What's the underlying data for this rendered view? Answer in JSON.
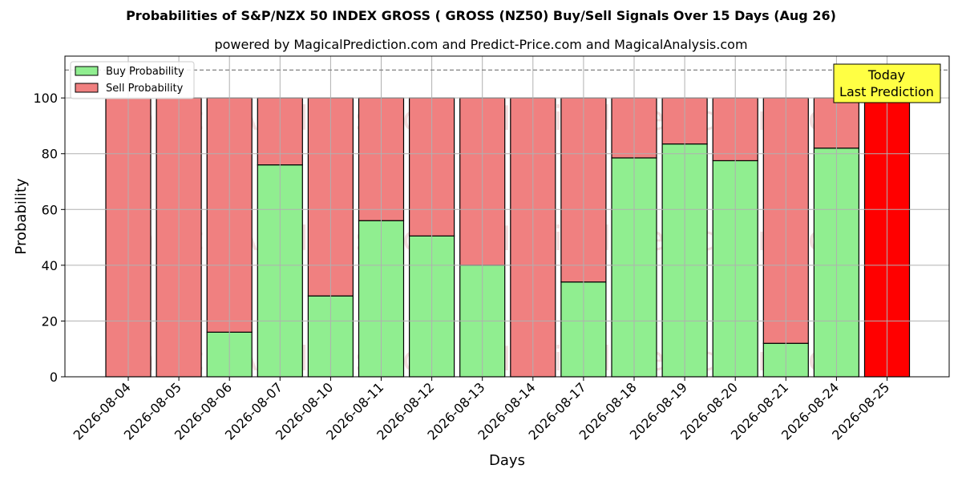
{
  "chart_data": {
    "type": "bar",
    "title": "Probabilities of S&P/NZX 50 INDEX GROSS ( GROSS  (NZ50) Buy/Sell Signals Over 15 Days (Aug 26)",
    "subtitle": "powered by MagicalPrediction.com and Predict-Price.com and MagicalAnalysis.com",
    "xlabel": "Days",
    "ylabel": "Probability",
    "ylim": [
      0,
      115
    ],
    "yticks": [
      0,
      20,
      40,
      60,
      80,
      100
    ],
    "reference_line": 110,
    "grid": true,
    "legend_position": "top-left",
    "categories": [
      "2026-08-04",
      "2026-08-05",
      "2026-08-06",
      "2026-08-07",
      "2026-08-10",
      "2026-08-11",
      "2026-08-12",
      "2026-08-13",
      "2026-08-14",
      "2026-08-17",
      "2026-08-18",
      "2026-08-19",
      "2026-08-20",
      "2026-08-21",
      "2026-08-24",
      "2026-08-25"
    ],
    "series": [
      {
        "name": "Buy Probability",
        "color": "#90ee90",
        "values": [
          0,
          0,
          16,
          76,
          29,
          56,
          50.5,
          40,
          0,
          34,
          78.5,
          83.5,
          77.5,
          12,
          82,
          0
        ]
      },
      {
        "name": "Sell Probability",
        "color": "#f08080",
        "values": [
          100,
          100,
          84,
          24,
          71,
          44,
          49.5,
          60,
          100,
          66,
          21.5,
          16.5,
          22.5,
          88,
          18,
          100
        ]
      }
    ],
    "highlight": {
      "index": 15,
      "color": "#ff0000"
    },
    "annotation": {
      "line1": "Today",
      "line2": "Last Prediction",
      "color": "#ffff44"
    },
    "watermarks": [
      "MagicalAnalysis.com",
      "MagicalPrediction.com"
    ]
  }
}
